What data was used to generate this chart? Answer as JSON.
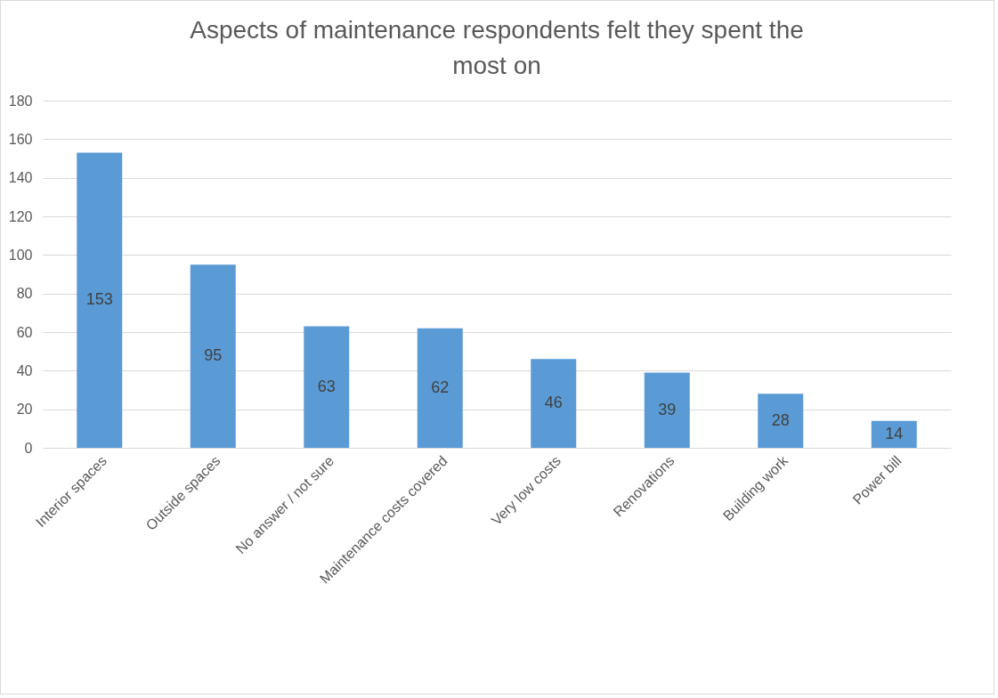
{
  "chart_data": {
    "type": "bar",
    "title": "Aspects of maintenance respondents felt they spent the most on",
    "categories": [
      "Interior spaces",
      "Outside spaces",
      "No answer / not sure",
      "Maintenance costs covered",
      "Very low costs",
      "Renovations",
      "Building work",
      "Power bill"
    ],
    "values": [
      153,
      95,
      63,
      62,
      46,
      39,
      28,
      14
    ],
    "color": "#5b9bd5",
    "ylim": [
      0,
      180
    ],
    "yticks": [
      0,
      20,
      40,
      60,
      80,
      100,
      120,
      140,
      160,
      180
    ],
    "grid": "y",
    "data_labels": true
  }
}
